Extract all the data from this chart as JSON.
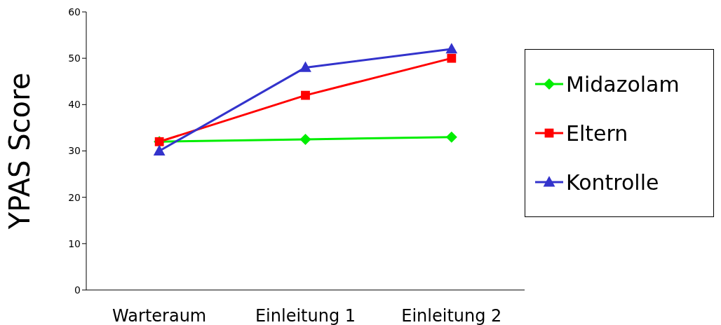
{
  "chart_data": {
    "type": "line",
    "ylabel": "YPAS Score",
    "categories": [
      "Warteraum",
      "Einleitung 1",
      "Einleitung 2"
    ],
    "series": [
      {
        "name": "Midazolam",
        "color": "#00ee00",
        "marker": "diamond",
        "values": [
          32,
          32.5,
          33
        ]
      },
      {
        "name": "Eltern",
        "color": "#ff0000",
        "marker": "square",
        "values": [
          32,
          42,
          50
        ]
      },
      {
        "name": "Kontrolle",
        "color": "#3333cc",
        "marker": "triangle",
        "values": [
          30,
          48,
          52
        ]
      }
    ],
    "ylim": [
      0,
      60
    ],
    "yticks": [
      0,
      10,
      20,
      30,
      40,
      50,
      60
    ],
    "legend": "right",
    "line_style": "solid"
  }
}
